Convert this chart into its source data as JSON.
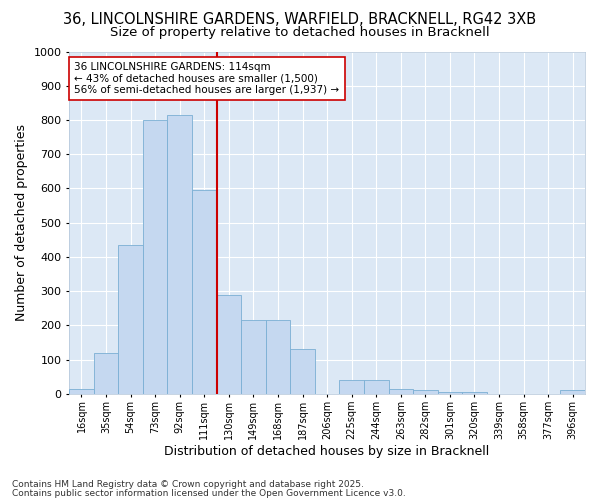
{
  "title_line1": "36, LINCOLNSHIRE GARDENS, WARFIELD, BRACKNELL, RG42 3XB",
  "title_line2": "Size of property relative to detached houses in Bracknell",
  "xlabel": "Distribution of detached houses by size in Bracknell",
  "ylabel": "Number of detached properties",
  "categories": [
    "16sqm",
    "35sqm",
    "54sqm",
    "73sqm",
    "92sqm",
    "111sqm",
    "130sqm",
    "149sqm",
    "168sqm",
    "187sqm",
    "206sqm",
    "225sqm",
    "244sqm",
    "263sqm",
    "282sqm",
    "301sqm",
    "320sqm",
    "339sqm",
    "358sqm",
    "377sqm",
    "396sqm"
  ],
  "values": [
    15,
    120,
    435,
    800,
    815,
    595,
    290,
    215,
    215,
    130,
    0,
    40,
    40,
    15,
    10,
    5,
    5,
    0,
    0,
    0,
    10
  ],
  "bar_color": "#c5d8f0",
  "bar_edge_color": "#7aafd4",
  "vline_x": 5.5,
  "vline_color": "#cc0000",
  "annotation_line1": "36 LINCOLNSHIRE GARDENS: 114sqm",
  "annotation_line2": "← 43% of detached houses are smaller (1,500)",
  "annotation_line3": "56% of semi-detached houses are larger (1,937) →",
  "annotation_box_color": "#ffffff",
  "annotation_box_edge_color": "#cc0000",
  "ylim": [
    0,
    1000
  ],
  "yticks": [
    0,
    100,
    200,
    300,
    400,
    500,
    600,
    700,
    800,
    900,
    1000
  ],
  "background_color": "#dce8f5",
  "grid_color": "#ffffff",
  "fig_background": "#ffffff",
  "footer_line1": "Contains HM Land Registry data © Crown copyright and database right 2025.",
  "footer_line2": "Contains public sector information licensed under the Open Government Licence v3.0.",
  "title_fontsize": 10.5,
  "subtitle_fontsize": 9.5,
  "axis_label_fontsize": 9,
  "tick_fontsize": 7,
  "annotation_fontsize": 7.5,
  "footer_fontsize": 6.5
}
